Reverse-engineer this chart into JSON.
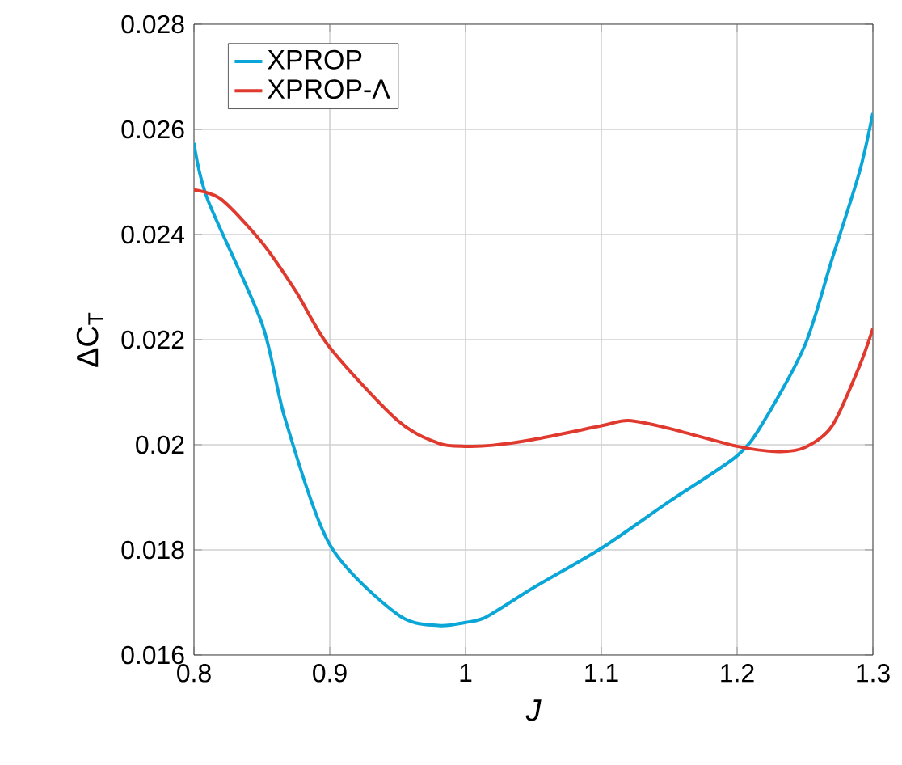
{
  "chart_data": {
    "type": "line",
    "xlabel": "J",
    "ylabel": "ΔC$_{T}$",
    "xlim": [
      0.8,
      1.3
    ],
    "ylim": [
      0.016,
      0.028
    ],
    "xticks": [
      0.8,
      0.9,
      1,
      1.1,
      1.2,
      1.3
    ],
    "yticks": [
      0.016,
      0.018,
      0.02,
      0.022,
      0.024,
      0.026,
      0.028
    ],
    "grid": true,
    "legend": "top left",
    "line_style": "solid",
    "marker": "none",
    "series": [
      {
        "name": "XPROP",
        "color": "#0aa6d8",
        "x": [
          0.8,
          0.81,
          0.85,
          0.867,
          0.9,
          0.95,
          0.98,
          1.0,
          1.015,
          1.05,
          1.1,
          1.15,
          1.2,
          1.22,
          1.25,
          1.27,
          1.29,
          1.3
        ],
        "values": [
          0.02574,
          0.02467,
          0.02231,
          0.0205,
          0.0181,
          0.01677,
          0.01656,
          0.01662,
          0.01672,
          0.01728,
          0.01803,
          0.01892,
          0.01979,
          0.02046,
          0.0219,
          0.02354,
          0.02518,
          0.02631
        ]
      },
      {
        "name": "XPROP-Λ",
        "color": "#e03a2f",
        "x": [
          0.8,
          0.82,
          0.85,
          0.875,
          0.9,
          0.95,
          0.98,
          1.0,
          1.02,
          1.05,
          1.1,
          1.12,
          1.15,
          1.2,
          1.23,
          1.25,
          1.27,
          1.29,
          1.3
        ],
        "values": [
          0.02485,
          0.02467,
          0.02385,
          0.02292,
          0.02185,
          0.02046,
          0.02003,
          0.01997,
          0.01999,
          0.0201,
          0.02036,
          0.02046,
          0.02031,
          0.01997,
          0.01987,
          0.01995,
          0.02036,
          0.02149,
          0.02221
        ]
      }
    ]
  }
}
